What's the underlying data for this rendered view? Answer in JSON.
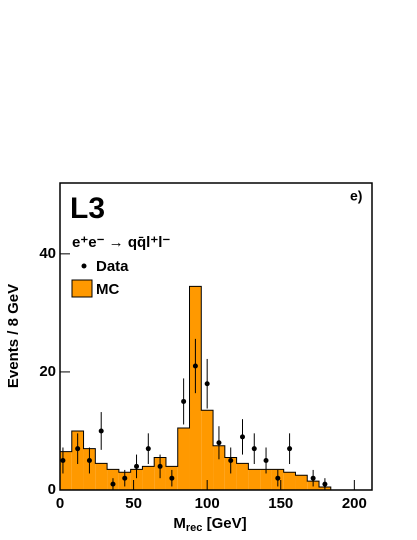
{
  "chart_data": {
    "type": "histogram",
    "panel_label": "e)",
    "experiment": "L3",
    "process": "e⁺e⁻ → qq̄l⁺l⁻",
    "x_label": {
      "main": "M",
      "sub": "rec",
      "unit": " [GeV]"
    },
    "y_label": "Events / 8 GeV",
    "xlim": [
      0,
      212
    ],
    "ylim": [
      0,
      52
    ],
    "xticks": [
      0,
      50,
      100,
      150,
      200
    ],
    "yticks": [
      0,
      20,
      40
    ],
    "mc": {
      "name": "MC",
      "color": "#ff9900",
      "bins": [
        0,
        8,
        16,
        24,
        32,
        40,
        48,
        56,
        64,
        72,
        80,
        88,
        96,
        104,
        112,
        120,
        128,
        136,
        144,
        152,
        160,
        168,
        176,
        184
      ],
      "counts": [
        6.5,
        10,
        7,
        4.5,
        3.5,
        3,
        3.5,
        4,
        5.5,
        4,
        10.5,
        34.5,
        13.5,
        7.5,
        5.5,
        4.5,
        3.5,
        3.5,
        3.5,
        3,
        2.5,
        1.5,
        0.5
      ]
    },
    "data": {
      "name": "Data",
      "color": "#000000",
      "x": [
        2,
        12,
        20,
        28,
        36,
        44,
        52,
        60,
        68,
        76,
        84,
        92,
        100,
        108,
        116,
        124,
        132,
        140,
        148,
        156,
        172,
        180
      ],
      "values": [
        5,
        7,
        5,
        10,
        1,
        2,
        4,
        7,
        4,
        2,
        15,
        21,
        18,
        8,
        5,
        9,
        7,
        5,
        2,
        7,
        2,
        1
      ],
      "errors": [
        2.2,
        2.6,
        2.2,
        3.2,
        1,
        1.4,
        2,
        2.6,
        2,
        1.4,
        3.9,
        4.6,
        4.2,
        2.8,
        2.2,
        3,
        2.6,
        2.2,
        1.4,
        2.6,
        1.4,
        1
      ]
    }
  }
}
